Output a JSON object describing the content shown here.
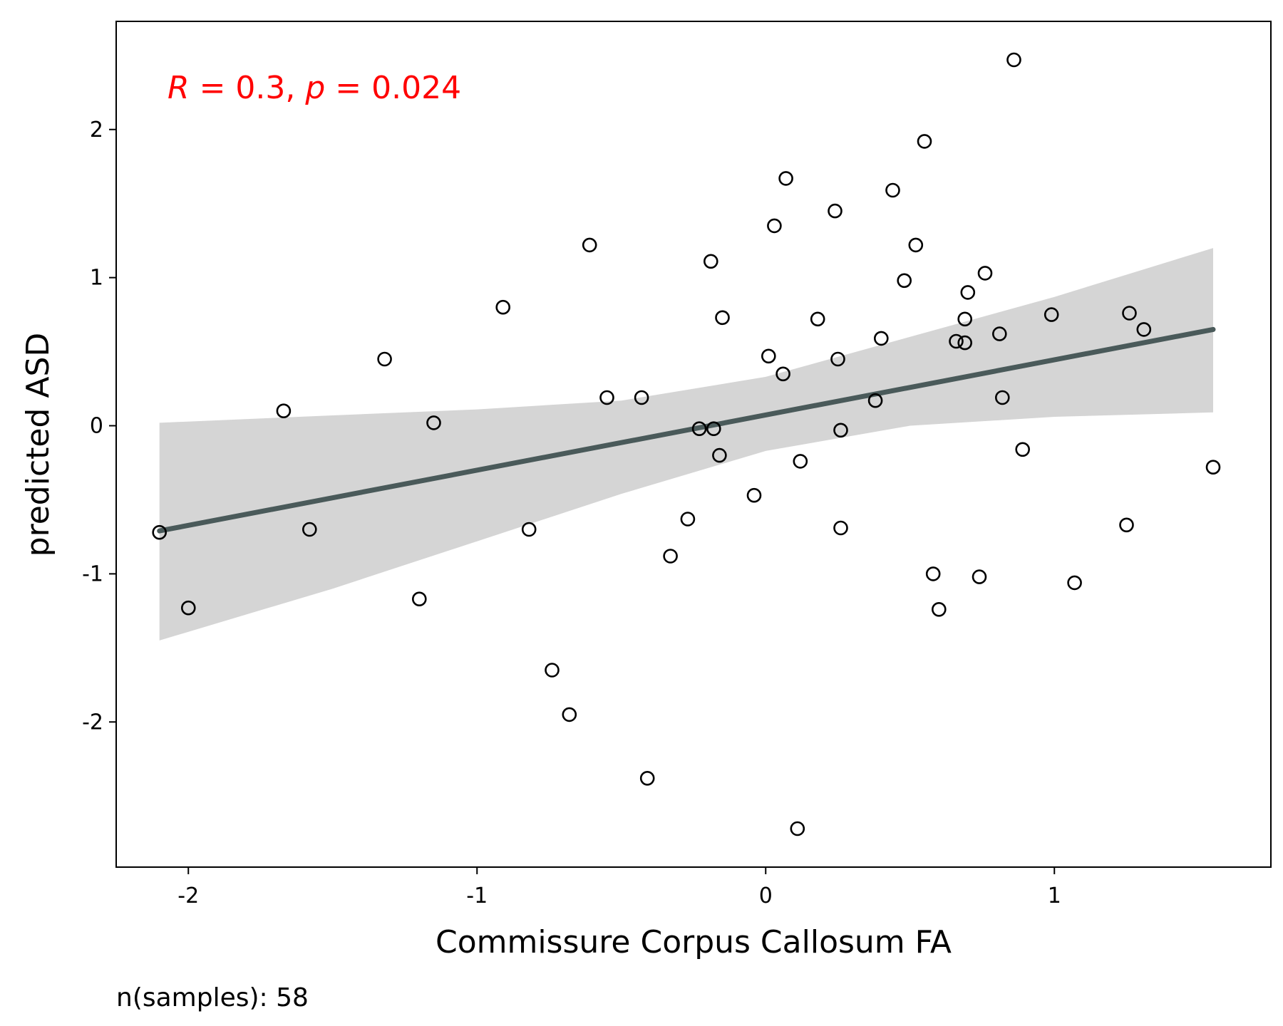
{
  "chart_data": {
    "type": "scatter",
    "xlabel": "Commissure Corpus Callosum FA",
    "ylabel": "predicted ASD",
    "xlim": [
      -2.25,
      1.75
    ],
    "ylim": [
      -2.98,
      2.73
    ],
    "xticks": [
      -2,
      -1,
      0,
      1
    ],
    "xtick_labels": [
      "-2",
      "-1",
      "0",
      "1"
    ],
    "yticks": [
      -2,
      -1,
      0,
      1,
      2
    ],
    "ytick_labels": [
      "-2",
      "-1",
      "0",
      "1",
      "2"
    ],
    "grid": false,
    "annotation": {
      "r_symbol": "R",
      "r_text": " = 0.3, ",
      "p_symbol": "p",
      "p_text": " = 0.024",
      "color": "#ff0000"
    },
    "footer": "n(samples): 58",
    "marker": {
      "shape": "open-circle",
      "color": "#000000"
    },
    "regression": {
      "color": "#4a5a5a",
      "x_range": [
        -2.1,
        1.55
      ],
      "line_y": [
        -0.71,
        0.65
      ]
    },
    "confidence_band": {
      "color": "#d5d5d5",
      "x": [
        -2.1,
        -1.5,
        -1.0,
        -0.5,
        0.0,
        0.5,
        1.0,
        1.55
      ],
      "upper": [
        0.02,
        0.07,
        0.11,
        0.17,
        0.33,
        0.6,
        0.87,
        1.2
      ],
      "lower": [
        -1.45,
        -1.1,
        -0.78,
        -0.46,
        -0.17,
        0.0,
        0.06,
        0.09
      ]
    },
    "points": [
      {
        "x": -2.1,
        "y": -0.72
      },
      {
        "x": -2.0,
        "y": -1.23
      },
      {
        "x": -1.67,
        "y": 0.1
      },
      {
        "x": -1.58,
        "y": -0.7
      },
      {
        "x": -1.32,
        "y": 0.45
      },
      {
        "x": -1.2,
        "y": -1.17
      },
      {
        "x": -1.15,
        "y": 0.02
      },
      {
        "x": -0.91,
        "y": 0.8
      },
      {
        "x": -0.82,
        "y": -0.7
      },
      {
        "x": -0.74,
        "y": -1.65
      },
      {
        "x": -0.68,
        "y": -1.95
      },
      {
        "x": -0.61,
        "y": 1.22
      },
      {
        "x": -0.55,
        "y": 0.19
      },
      {
        "x": -0.43,
        "y": 0.19
      },
      {
        "x": -0.41,
        "y": -2.38
      },
      {
        "x": -0.33,
        "y": -0.88
      },
      {
        "x": -0.27,
        "y": -0.63
      },
      {
        "x": -0.23,
        "y": -0.02
      },
      {
        "x": -0.19,
        "y": 1.11
      },
      {
        "x": -0.18,
        "y": -0.02
      },
      {
        "x": -0.16,
        "y": -0.2
      },
      {
        "x": -0.15,
        "y": 0.73
      },
      {
        "x": -0.04,
        "y": -0.47
      },
      {
        "x": 0.01,
        "y": 0.47
      },
      {
        "x": 0.03,
        "y": 1.35
      },
      {
        "x": 0.06,
        "y": 0.35
      },
      {
        "x": 0.07,
        "y": 1.67
      },
      {
        "x": 0.11,
        "y": -2.72
      },
      {
        "x": 0.12,
        "y": -0.24
      },
      {
        "x": 0.18,
        "y": 0.72
      },
      {
        "x": 0.24,
        "y": 1.45
      },
      {
        "x": 0.25,
        "y": 0.45
      },
      {
        "x": 0.26,
        "y": -0.03
      },
      {
        "x": 0.26,
        "y": -0.69
      },
      {
        "x": 0.38,
        "y": 0.17
      },
      {
        "x": 0.4,
        "y": 0.59
      },
      {
        "x": 0.44,
        "y": 1.59
      },
      {
        "x": 0.48,
        "y": 0.98
      },
      {
        "x": 0.52,
        "y": 1.22
      },
      {
        "x": 0.55,
        "y": 1.92
      },
      {
        "x": 0.58,
        "y": -1.0
      },
      {
        "x": 0.6,
        "y": -1.24
      },
      {
        "x": 0.66,
        "y": 0.57
      },
      {
        "x": 0.69,
        "y": 0.56
      },
      {
        "x": 0.69,
        "y": 0.72
      },
      {
        "x": 0.7,
        "y": 0.9
      },
      {
        "x": 0.74,
        "y": -1.02
      },
      {
        "x": 0.76,
        "y": 1.03
      },
      {
        "x": 0.81,
        "y": 0.62
      },
      {
        "x": 0.82,
        "y": 0.19
      },
      {
        "x": 0.86,
        "y": 2.47
      },
      {
        "x": 0.89,
        "y": -0.16
      },
      {
        "x": 0.99,
        "y": 0.75
      },
      {
        "x": 1.07,
        "y": -1.06
      },
      {
        "x": 1.25,
        "y": -0.67
      },
      {
        "x": 1.26,
        "y": 0.76
      },
      {
        "x": 1.31,
        "y": 0.65
      },
      {
        "x": 1.55,
        "y": -0.28
      }
    ]
  }
}
